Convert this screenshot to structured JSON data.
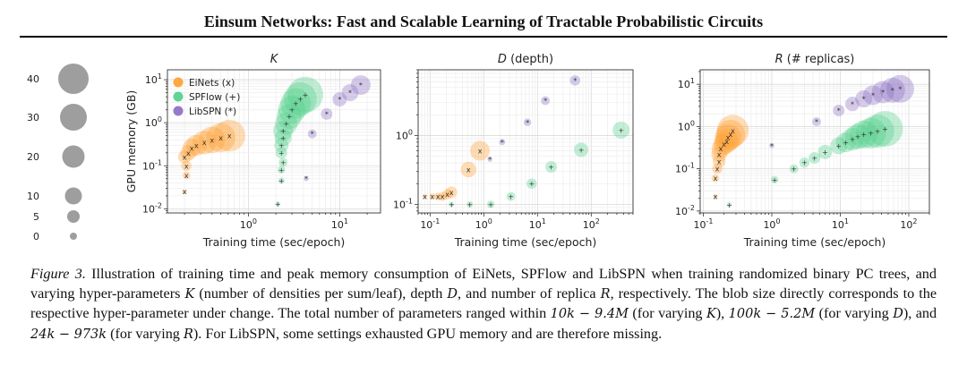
{
  "header": {
    "title": "Einsum Networks: Fast and Scalable Learning of Tractable Probabilistic Circuits"
  },
  "size_legend": {
    "values": [
      40,
      30,
      20,
      10,
      5,
      0
    ]
  },
  "chart_data": [
    {
      "type": "scatter",
      "title": "K",
      "xlabel": "Training time (sec/epoch)",
      "ylabel": "GPU memory (GB)",
      "xscale": "log",
      "yscale": "log",
      "xlim": [
        0.13,
        28
      ],
      "ylim": [
        0.008,
        17
      ],
      "xticks": [
        {
          "v": 1,
          "label": "10^0"
        },
        {
          "v": 10,
          "label": "10^1"
        }
      ],
      "yticks": [
        {
          "v": 0.01,
          "label": "10^-2"
        },
        {
          "v": 0.1,
          "label": "10^-1"
        },
        {
          "v": 1,
          "label": "10^0"
        },
        {
          "v": 10,
          "label": "10^1"
        }
      ],
      "legend": {
        "position": "top-left",
        "entries": [
          "EiNets (x)",
          "SPFlow (+)",
          "LibSPN (*)"
        ]
      },
      "series": [
        {
          "name": "EiNets",
          "marker": "x",
          "color": "#ff9f2e",
          "points": [
            [
              0.2,
              0.025
            ],
            [
              0.21,
              0.06
            ],
            [
              0.21,
              0.1
            ],
            [
              0.2,
              0.16
            ],
            [
              0.22,
              0.2
            ],
            [
              0.24,
              0.26
            ],
            [
              0.27,
              0.3
            ],
            [
              0.33,
              0.35
            ],
            [
              0.4,
              0.4
            ],
            [
              0.5,
              0.45
            ],
            [
              0.62,
              0.5
            ]
          ],
          "sizes": [
            1,
            3,
            5,
            7,
            9,
            11,
            13,
            15,
            17,
            19,
            21
          ]
        },
        {
          "name": "SPFlow",
          "marker": "+",
          "color": "#4fcf8a",
          "points": [
            [
              2.1,
              0.013
            ],
            [
              2.3,
              0.045
            ],
            [
              2.3,
              0.08
            ],
            [
              2.4,
              0.12
            ],
            [
              2.3,
              0.2
            ],
            [
              2.3,
              0.3
            ],
            [
              2.4,
              0.45
            ],
            [
              2.4,
              0.65
            ],
            [
              2.6,
              0.95
            ],
            [
              2.8,
              1.4
            ],
            [
              3.0,
              2.0
            ],
            [
              3.3,
              2.8
            ],
            [
              3.7,
              3.6
            ],
            [
              4.2,
              4.5
            ]
          ],
          "sizes": [
            1,
            2,
            3,
            4,
            6,
            8,
            10,
            12,
            14,
            16,
            18,
            20,
            22,
            24
          ]
        },
        {
          "name": "LibSPN",
          "marker": "*",
          "color": "#8a6cc4",
          "points": [
            [
              4.3,
              0.05
            ],
            [
              5.0,
              0.55
            ],
            [
              7.2,
              1.6
            ],
            [
              10,
              3.5
            ],
            [
              13,
              5.0
            ],
            [
              17,
              7.5
            ]
          ],
          "sizes": [
            1,
            4,
            6,
            8,
            10,
            12
          ]
        }
      ]
    },
    {
      "type": "scatter",
      "title": "D (depth)",
      "xlabel": "Training time (sec/epoch)",
      "ylabel": "",
      "xscale": "log",
      "yscale": "log",
      "xlim": [
        0.06,
        600
      ],
      "ylim": [
        0.075,
        9
      ],
      "xticks": [
        {
          "v": 0.1,
          "label": "10^-1"
        },
        {
          "v": 1,
          "label": "10^0"
        },
        {
          "v": 10,
          "label": "10^1"
        },
        {
          "v": 100,
          "label": "10^2"
        }
      ],
      "yticks": [
        {
          "v": 0.1,
          "label": "10^-1"
        },
        {
          "v": 1,
          "label": "10^0"
        }
      ],
      "series": [
        {
          "name": "EiNets",
          "marker": "x",
          "color": "#ff9f2e",
          "points": [
            [
              0.08,
              0.13
            ],
            [
              0.11,
              0.13
            ],
            [
              0.14,
              0.13
            ],
            [
              0.17,
              0.13
            ],
            [
              0.21,
              0.14
            ],
            [
              0.25,
              0.15
            ],
            [
              0.52,
              0.32
            ],
            [
              0.85,
              0.6
            ]
          ],
          "sizes": [
            1,
            2,
            3,
            4,
            5,
            6,
            9,
            12
          ]
        },
        {
          "name": "SPFlow",
          "marker": "+",
          "color": "#4fcf8a",
          "points": [
            [
              0.25,
              0.1
            ],
            [
              0.55,
              0.1
            ],
            [
              1.35,
              0.1
            ],
            [
              3.2,
              0.13
            ],
            [
              7.8,
              0.2
            ],
            [
              18,
              0.35
            ],
            [
              65,
              0.62
            ],
            [
              360,
              1.2
            ]
          ],
          "sizes": [
            1,
            2,
            3,
            4,
            5,
            6,
            8,
            10
          ]
        },
        {
          "name": "LibSPN",
          "marker": "*",
          "color": "#8a6cc4",
          "points": [
            [
              1.3,
              0.45
            ],
            [
              2.2,
              0.8
            ],
            [
              6.5,
              1.55
            ],
            [
              14,
              3.2
            ],
            [
              50,
              6.3
            ]
          ],
          "sizes": [
            1,
            2,
            3,
            4,
            5
          ]
        }
      ]
    },
    {
      "type": "scatter",
      "title": "R (# replicas)",
      "xlabel": "Training time (sec/epoch)",
      "ylabel": "",
      "xscale": "log",
      "yscale": "log",
      "xlim": [
        0.09,
        200
      ],
      "ylim": [
        0.009,
        22
      ],
      "xticks": [
        {
          "v": 0.1,
          "label": "10^-1"
        },
        {
          "v": 1,
          "label": "10^0"
        },
        {
          "v": 10,
          "label": "10^1"
        },
        {
          "v": 100,
          "label": "10^2"
        }
      ],
      "yticks": [
        {
          "v": 0.01,
          "label": "10^-2"
        },
        {
          "v": 0.1,
          "label": "10^-1"
        },
        {
          "v": 1,
          "label": "10^0"
        },
        {
          "v": 10,
          "label": "10^1"
        }
      ],
      "series": [
        {
          "name": "EiNets",
          "marker": "x",
          "color": "#ff9f2e",
          "points": [
            [
              0.15,
              0.022
            ],
            [
              0.15,
              0.06
            ],
            [
              0.16,
              0.1
            ],
            [
              0.17,
              0.15
            ],
            [
              0.17,
              0.22
            ],
            [
              0.18,
              0.3
            ],
            [
              0.2,
              0.38
            ],
            [
              0.22,
              0.45
            ],
            [
              0.23,
              0.55
            ],
            [
              0.25,
              0.65
            ],
            [
              0.27,
              0.8
            ]
          ],
          "sizes": [
            1,
            3,
            5,
            7,
            9,
            11,
            13,
            15,
            17,
            19,
            21
          ]
        },
        {
          "name": "SPFlow",
          "marker": "+",
          "color": "#4fcf8a",
          "points": [
            [
              0.24,
              0.014
            ],
            [
              1.1,
              0.055
            ],
            [
              2.1,
              0.1
            ],
            [
              3.0,
              0.14
            ],
            [
              4.2,
              0.18
            ],
            [
              6.0,
              0.25
            ],
            [
              9.5,
              0.35
            ],
            [
              12,
              0.42
            ],
            [
              15,
              0.5
            ],
            [
              18,
              0.58
            ],
            [
              22,
              0.65
            ],
            [
              28,
              0.7
            ],
            [
              35,
              0.78
            ],
            [
              45,
              0.88
            ]
          ],
          "sizes": [
            1,
            3,
            4,
            5,
            6,
            8,
            10,
            12,
            14,
            16,
            18,
            20,
            22,
            24
          ]
        },
        {
          "name": "LibSPN",
          "marker": "*",
          "color": "#8a6cc4",
          "points": [
            [
              1.0,
              0.35
            ],
            [
              4.5,
              1.3
            ],
            [
              9.5,
              2.4
            ],
            [
              15,
              3.4
            ],
            [
              22,
              4.5
            ],
            [
              30,
              5.5
            ],
            [
              42,
              6.5
            ],
            [
              58,
              7.2
            ],
            [
              75,
              7.8
            ]
          ],
          "sizes": [
            1,
            4,
            6,
            8,
            10,
            12,
            14,
            16,
            18
          ]
        }
      ]
    }
  ],
  "caption": {
    "label": "Figure 3.",
    "s1": "Illustration of training time and peak memory consumption of EiNets, SPFlow and LibSPN when training randomized binary PC trees, and varying hyper-parameters",
    "K": "K",
    "s2": "(number of densities per sum/leaf), depth",
    "D": "D",
    "s3": ", and number of replica",
    "R": "R",
    "s4": ", respectively. The blob size directly corresponds to the respective hyper-parameter under change. The total number of parameters ranged within",
    "k_range": "10k − 9.4M",
    "s5": "(for varying",
    "K2": "K",
    "s6": "),",
    "d_range": "100k − 5.2M",
    "s7": "(for varying",
    "D2": "D",
    "s8": "), and",
    "r_range": "24k − 973k",
    "s9": "(for varying",
    "R2": "R",
    "s10": "). For LibSPN, some settings exhausted GPU memory and are therefore missing."
  }
}
